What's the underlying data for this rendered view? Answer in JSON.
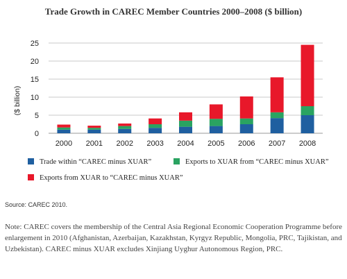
{
  "chart_data": {
    "type": "bar",
    "stacked": true,
    "title": "Trade Growth in CAREC Member Countries 2000–2008 ($ billion)",
    "ylabel": "($ billion)",
    "xlabel": "",
    "ylim": [
      0,
      25
    ],
    "yticks": [
      0,
      5,
      10,
      15,
      20,
      25
    ],
    "grid": true,
    "legend_position": "bottom",
    "categories": [
      "2000",
      "2001",
      "2002",
      "2003",
      "2004",
      "2005",
      "2006",
      "2007",
      "2008"
    ],
    "series": [
      {
        "name": "Trade within “CAREC minus XUAR”",
        "color": "#1f5fa0",
        "values": [
          1.0,
          1.0,
          1.2,
          1.5,
          1.8,
          2.0,
          2.5,
          4.2,
          5.0
        ]
      },
      {
        "name": "Exports to XUAR from “CAREC minus XUAR”",
        "color": "#2aa361",
        "values": [
          0.6,
          0.5,
          0.8,
          1.0,
          1.7,
          2.0,
          1.6,
          1.6,
          2.5
        ]
      },
      {
        "name": "Exports from XUAR to “CAREC minus XUAR”",
        "color": "#e8182a",
        "values": [
          0.8,
          0.6,
          0.7,
          1.6,
          2.3,
          4.0,
          6.1,
          9.7,
          17.0
        ]
      }
    ]
  },
  "source": "Source: CAREC 2010.",
  "note": "Note: CAREC covers the membership of the Central Asia Regional Economic Cooperation Programme before enlargement in 2010 (Afghanistan, Azerbaijan, Kazakhstan, Kyrgyz Republic, Mongolia, PRC, Tajikistan, and Uzbekistan). CAREC minus XUAR excludes Xinjiang Uyghur Autonomous Region, PRC."
}
